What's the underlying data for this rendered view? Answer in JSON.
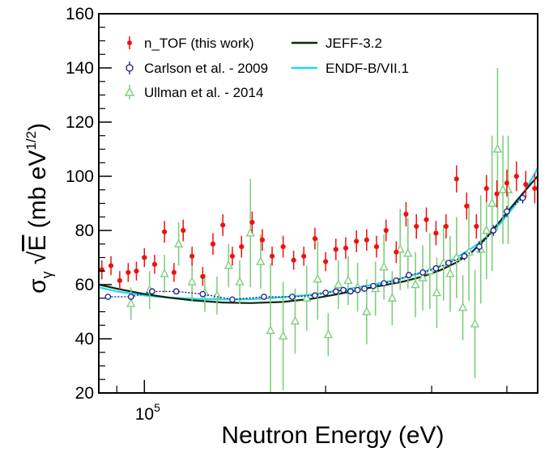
{
  "chart_data": {
    "type": "scatter",
    "xlabel": "Neutron Energy (eV)",
    "ylabel_main": "σ",
    "ylabel_sub": "γ",
    "ylabel_sqrt": "E",
    "ylabel_units_pre": "(mb eV",
    "ylabel_units_sup": "1/2",
    "ylabel_units_post": ")",
    "x_scale": "log",
    "xlim": [
      84000,
      450000
    ],
    "ylim": [
      20,
      160
    ],
    "x_tick_labels": [
      {
        "base": "10",
        "exp": "5",
        "value": 100000
      }
    ],
    "y_ticks": [
      20,
      40,
      60,
      80,
      100,
      120,
      140,
      160
    ],
    "grid": false,
    "legend_position": "top",
    "colors": {
      "ntof": "#ee1111",
      "carlson": "#1a1a8c",
      "ullman": "#7fce7f",
      "jeff": "#0c2a0c",
      "endf": "#19dcf0"
    },
    "series": [
      {
        "name": "n_TOF (this work)",
        "marker": "filled-circle",
        "x": [
          85000,
          88000,
          91000,
          94000,
          97000,
          100000,
          104000,
          108000,
          112000,
          116000,
          120000,
          125000,
          130000,
          135000,
          140000,
          145000,
          151000,
          157000,
          163000,
          170000,
          177000,
          184000,
          192000,
          200000,
          208000,
          216000,
          225000,
          234000,
          243000,
          252000,
          262000,
          272000,
          283000,
          294000,
          305000,
          317000,
          330000,
          343000,
          356000,
          370000,
          385000,
          400000,
          415000,
          430000,
          445000
        ],
        "values": [
          65.5,
          67,
          61.5,
          64.5,
          65,
          70,
          67.5,
          79.5,
          64.5,
          80,
          70.5,
          63,
          75,
          82,
          70.5,
          74,
          83,
          76.5,
          70.5,
          74,
          69,
          70.5,
          77,
          68.5,
          73,
          73.5,
          76,
          76.5,
          74,
          80,
          72,
          86,
          81.5,
          84,
          79,
          81.5,
          99,
          89,
          81.5,
          95.5,
          93.5,
          97.5,
          100,
          97,
          95.5
        ],
        "err": [
          3.5,
          3.5,
          3.5,
          3.5,
          3.5,
          3.5,
          3.5,
          4,
          3.5,
          4,
          3.5,
          3.5,
          4,
          4,
          3.5,
          4,
          4,
          4,
          3.5,
          4,
          3.5,
          3.5,
          4,
          3.5,
          4,
          4,
          4,
          4,
          4,
          4,
          4,
          4.5,
          4.5,
          4.5,
          4.5,
          4.5,
          5,
          5,
          4.5,
          5,
          5,
          5,
          5.5,
          5,
          5.5
        ]
      },
      {
        "name": "Carlson et al. - 2009",
        "marker": "open-circle",
        "x": [
          87000,
          95000,
          103000,
          113000,
          125000,
          140000,
          158000,
          176000,
          192000,
          200000,
          208000,
          214000,
          220000,
          226000,
          232000,
          240000,
          250000,
          262000,
          275000,
          290000,
          305000,
          320000,
          340000,
          360000,
          380000,
          400000,
          425000
        ],
        "values": [
          55.5,
          55.5,
          57.5,
          57.5,
          56.5,
          54.5,
          55.5,
          55.5,
          56,
          57,
          57.5,
          58,
          57.5,
          58,
          58.5,
          59.5,
          60.5,
          61.5,
          63.5,
          64.5,
          66,
          68,
          70.5,
          74,
          80,
          87,
          92
        ],
        "err": [
          1,
          1,
          1,
          1,
          1,
          1,
          1,
          1,
          1,
          1,
          1,
          1,
          1,
          1,
          1,
          1,
          1,
          1,
          1,
          1,
          1,
          1,
          1.5,
          2,
          2,
          2,
          2
        ]
      },
      {
        "name": "Ullman et al. - 2014",
        "marker": "open-triangle",
        "x": [
          95000,
          102000,
          108000,
          114000,
          120000,
          126000,
          132000,
          138000,
          144000,
          150000,
          156000,
          162000,
          170000,
          178000,
          186000,
          194000,
          202000,
          210000,
          218000,
          226000,
          234000,
          242000,
          250000,
          258000,
          266000,
          274000,
          282000,
          290000,
          298000,
          306000,
          314000,
          322000,
          330000,
          338000,
          346000,
          354000,
          362000,
          370000,
          378000,
          386000,
          394000,
          402000
        ],
        "values": [
          53,
          58,
          64,
          75,
          61,
          57,
          56,
          67,
          61,
          79,
          68.5,
          43,
          41,
          46.5,
          55,
          62,
          41.5,
          60,
          61.5,
          59,
          50,
          58.5,
          66.5,
          55,
          73,
          71.5,
          60,
          62.5,
          65,
          57,
          68,
          64,
          70,
          51.5,
          72,
          45.5,
          73,
          80,
          90,
          110,
          95,
          95
        ],
        "err": [
          6,
          7,
          7,
          8,
          7,
          7,
          7,
          8,
          8,
          20,
          10,
          25,
          20,
          12,
          12,
          15,
          8,
          9,
          9,
          9,
          12,
          10,
          12,
          10,
          15,
          13,
          12,
          12,
          14,
          13,
          14,
          14,
          15,
          12,
          18,
          20,
          20,
          18,
          25,
          30,
          20,
          20
        ]
      },
      {
        "name": "JEFF-3.2",
        "marker": "line",
        "x": [
          84000,
          90000,
          100000,
          110000,
          120000,
          135000,
          150000,
          170000,
          190000,
          210000,
          230000,
          250000,
          270000,
          290000,
          310000,
          330000,
          350000,
          370000,
          390000,
          410000,
          430000,
          450000
        ],
        "values": [
          60,
          58.5,
          56.5,
          55.2,
          54.2,
          53.4,
          53.2,
          53.6,
          54.8,
          56.5,
          58.3,
          59.8,
          61.2,
          63,
          65.3,
          68.2,
          72,
          77.5,
          83.5,
          89.5,
          95,
          100
        ]
      },
      {
        "name": "ENDF-B/VII.1",
        "marker": "line",
        "x": [
          84000,
          90000,
          100000,
          110000,
          120000,
          135000,
          150000,
          170000,
          190000,
          210000,
          230000,
          250000,
          270000,
          290000,
          310000,
          330000,
          350000,
          370000,
          390000,
          410000,
          430000,
          450000
        ],
        "values": [
          59,
          57.5,
          56,
          55.2,
          54.8,
          54.5,
          54.6,
          55.3,
          56.4,
          57.8,
          59.3,
          60.8,
          62.5,
          64.5,
          67,
          70,
          73.5,
          77.5,
          82.5,
          88.5,
          95,
          103
        ]
      }
    ]
  }
}
